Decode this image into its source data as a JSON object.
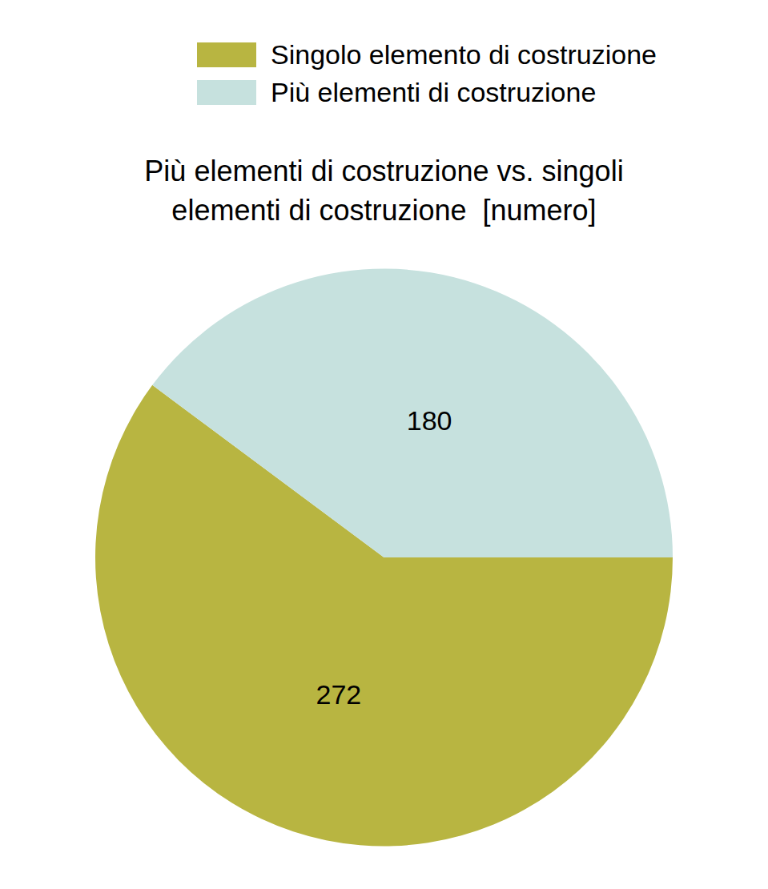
{
  "chart_data": {
    "type": "pie",
    "title": "Più elementi di costruzione vs. singoli elementi di costruzione  [numero]",
    "categories": [
      "Singolo elemento di costruzione",
      "Più elementi di costruzione"
    ],
    "values": [
      272,
      180
    ],
    "colors": [
      "#b8b541",
      "#c6e1de"
    ],
    "data_labels": true,
    "legend": "upper right"
  }
}
